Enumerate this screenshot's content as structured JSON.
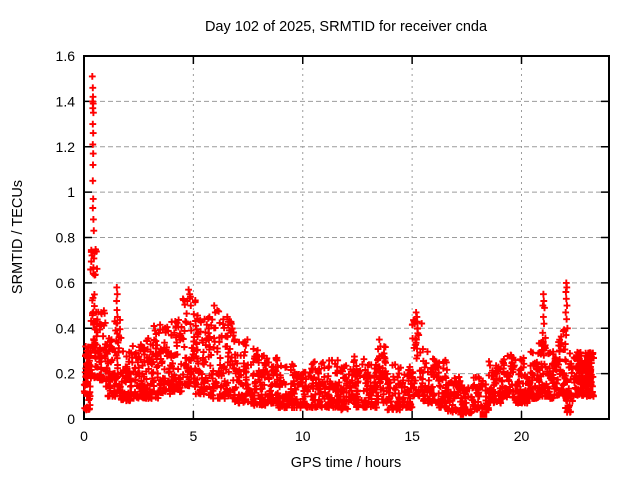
{
  "chart_data": {
    "type": "scatter",
    "title": "Day 102 of 2025, SRMTID for receiver cnda",
    "xlabel": "GPS time / hours",
    "ylabel": "SRMTID / TECUs",
    "xlim": [
      0,
      24
    ],
    "ylim": [
      0,
      1.6
    ],
    "xticks": [
      0,
      5,
      10,
      15,
      20
    ],
    "yticks": [
      0,
      0.2,
      0.4,
      0.6,
      0.8,
      1,
      1.2,
      1.4,
      1.6
    ],
    "grid": true,
    "legend": false,
    "marker": "plus",
    "marker_color": "#ff0000",
    "grid_color": "#9c9c9c",
    "border_color": "#000000",
    "series_name": "SRMTID",
    "dense_bands": [
      [
        0.0,
        0.3,
        0.04,
        0.32,
        40
      ],
      [
        0.05,
        0.3,
        0.15,
        0.28,
        20
      ],
      [
        0.3,
        0.6,
        0.18,
        0.55,
        45
      ],
      [
        0.3,
        0.6,
        0.62,
        0.8,
        14
      ],
      [
        0.6,
        1.0,
        0.17,
        0.48,
        50
      ],
      [
        1.0,
        1.4,
        0.1,
        0.36,
        50
      ],
      [
        1.4,
        1.7,
        0.1,
        0.45,
        40
      ],
      [
        1.7,
        2.2,
        0.08,
        0.3,
        55
      ],
      [
        2.2,
        2.8,
        0.09,
        0.33,
        60
      ],
      [
        2.8,
        3.4,
        0.09,
        0.38,
        60
      ],
      [
        3.4,
        4.0,
        0.11,
        0.42,
        60
      ],
      [
        4.0,
        4.5,
        0.12,
        0.45,
        55
      ],
      [
        4.5,
        5.1,
        0.14,
        0.54,
        60
      ],
      [
        5.1,
        5.6,
        0.11,
        0.46,
        55
      ],
      [
        5.6,
        6.3,
        0.09,
        0.48,
        65
      ],
      [
        6.3,
        6.9,
        0.09,
        0.44,
        60
      ],
      [
        6.9,
        7.5,
        0.07,
        0.36,
        60
      ],
      [
        7.5,
        8.2,
        0.06,
        0.31,
        60
      ],
      [
        8.2,
        8.9,
        0.06,
        0.28,
        60
      ],
      [
        8.9,
        9.6,
        0.05,
        0.25,
        60
      ],
      [
        9.6,
        10.3,
        0.05,
        0.22,
        60
      ],
      [
        10.3,
        11.0,
        0.05,
        0.26,
        60
      ],
      [
        11.0,
        11.6,
        0.05,
        0.26,
        55
      ],
      [
        11.6,
        12.3,
        0.04,
        0.24,
        60
      ],
      [
        12.3,
        12.9,
        0.05,
        0.28,
        55
      ],
      [
        12.9,
        13.4,
        0.05,
        0.24,
        50
      ],
      [
        13.4,
        13.8,
        0.07,
        0.33,
        40
      ],
      [
        13.8,
        14.5,
        0.04,
        0.24,
        60
      ],
      [
        14.5,
        15.0,
        0.05,
        0.23,
        50
      ],
      [
        15.0,
        15.5,
        0.1,
        0.44,
        45
      ],
      [
        15.5,
        16.1,
        0.07,
        0.3,
        55
      ],
      [
        16.1,
        16.6,
        0.05,
        0.27,
        50
      ],
      [
        16.6,
        17.2,
        0.03,
        0.2,
        50
      ],
      [
        17.2,
        17.8,
        0.02,
        0.16,
        45
      ],
      [
        17.8,
        18.5,
        0.04,
        0.2,
        45
      ],
      [
        18.5,
        19.1,
        0.07,
        0.26,
        55
      ],
      [
        19.1,
        19.7,
        0.09,
        0.3,
        60
      ],
      [
        19.7,
        20.3,
        0.07,
        0.27,
        60
      ],
      [
        20.3,
        20.8,
        0.09,
        0.3,
        55
      ],
      [
        20.8,
        21.2,
        0.1,
        0.36,
        45
      ],
      [
        21.2,
        21.6,
        0.09,
        0.3,
        45
      ],
      [
        21.6,
        22.0,
        0.1,
        0.4,
        40
      ],
      [
        22.0,
        22.35,
        0.03,
        0.3,
        35
      ],
      [
        22.35,
        23.3,
        0.1,
        0.3,
        120
      ],
      [
        22.5,
        23.2,
        0.15,
        0.27,
        60
      ]
    ],
    "outlier_points": [
      [
        0.38,
        1.51
      ],
      [
        0.4,
        1.46
      ],
      [
        0.41,
        1.42
      ],
      [
        0.39,
        1.4
      ],
      [
        0.42,
        1.39
      ],
      [
        0.4,
        1.37
      ],
      [
        0.43,
        1.35
      ],
      [
        0.4,
        1.3
      ],
      [
        0.42,
        1.26
      ],
      [
        0.4,
        1.21
      ],
      [
        0.42,
        1.17
      ],
      [
        0.41,
        1.12
      ],
      [
        0.4,
        1.05
      ],
      [
        0.42,
        0.97
      ],
      [
        0.4,
        0.93
      ],
      [
        0.43,
        0.88
      ],
      [
        0.45,
        0.83
      ],
      [
        1.5,
        0.58
      ],
      [
        1.52,
        0.55
      ],
      [
        1.49,
        0.52
      ],
      [
        1.51,
        0.48
      ],
      [
        1.53,
        0.45
      ],
      [
        3.2,
        0.41
      ],
      [
        3.25,
        0.39
      ],
      [
        4.78,
        0.57
      ],
      [
        4.83,
        0.55
      ],
      [
        4.72,
        0.52
      ],
      [
        4.88,
        0.5
      ],
      [
        5.95,
        0.5
      ],
      [
        6.0,
        0.47
      ],
      [
        6.55,
        0.45
      ],
      [
        6.65,
        0.43
      ],
      [
        13.5,
        0.35
      ],
      [
        13.55,
        0.32
      ],
      [
        15.18,
        0.47
      ],
      [
        15.22,
        0.45
      ],
      [
        15.15,
        0.43
      ],
      [
        15.25,
        0.4
      ],
      [
        15.3,
        0.37
      ],
      [
        15.2,
        0.35
      ],
      [
        21.0,
        0.55
      ],
      [
        21.02,
        0.52
      ],
      [
        20.98,
        0.5
      ],
      [
        21.05,
        0.49
      ],
      [
        21.0,
        0.45
      ],
      [
        21.03,
        0.42
      ],
      [
        20.97,
        0.38
      ],
      [
        22.05,
        0.6
      ],
      [
        22.07,
        0.58
      ],
      [
        22.03,
        0.56
      ],
      [
        22.05,
        0.53
      ],
      [
        22.08,
        0.5
      ],
      [
        22.02,
        0.47
      ],
      [
        22.06,
        0.44
      ],
      [
        22.1,
        0.4
      ],
      [
        22.04,
        0.37
      ],
      [
        22.0,
        0.33
      ],
      [
        17.3,
        0.02
      ],
      [
        17.6,
        0.03
      ],
      [
        22.15,
        0.04
      ],
      [
        22.2,
        0.06
      ]
    ],
    "cluster_square": {
      "x": 18.26,
      "y": 0.02,
      "width_hours": 0.35,
      "height_tecu": 0.03
    }
  }
}
